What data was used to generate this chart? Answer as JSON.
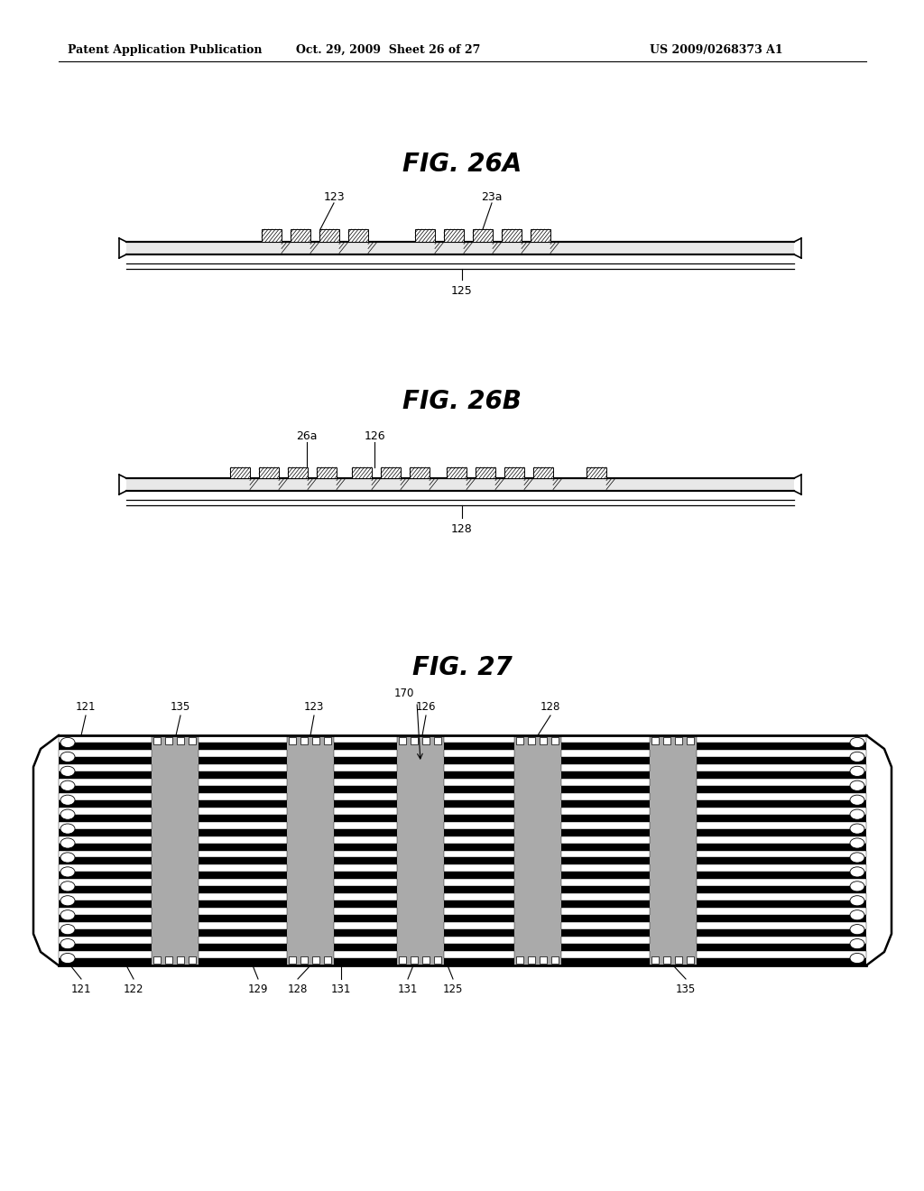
{
  "background_color": "#ffffff",
  "header_left": "Patent Application Publication",
  "header_mid": "Oct. 29, 2009  Sheet 26 of 27",
  "header_right": "US 2009/0268373 A1",
  "fig26a_title": "FIG. 26A",
  "fig26b_title": "FIG. 26B",
  "fig27_title": "FIG. 27"
}
